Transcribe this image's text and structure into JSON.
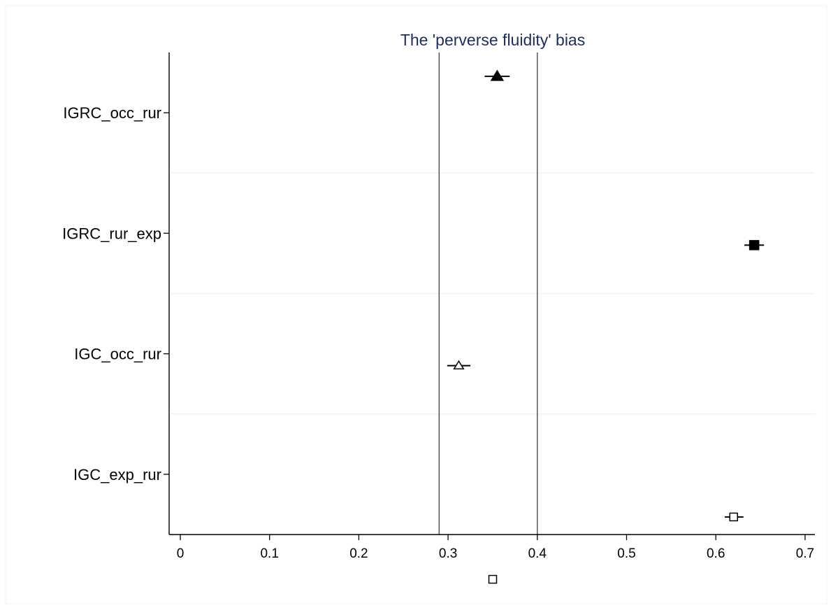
{
  "chart_data": {
    "type": "scatter",
    "title": "The 'perverse fluidity' bias",
    "xlabel": "",
    "ylabel": "",
    "xlim": [
      -0.01,
      0.71
    ],
    "xticks": [
      "0",
      "0.1",
      "0.2",
      "0.3",
      "0.4",
      "0.5",
      "0.6",
      "0.7"
    ],
    "categories": [
      "IGRC_occ_rur",
      "IGRC_rur_exp",
      "IGC_occ_rur",
      "IGC_exp_rur"
    ],
    "reference_lines": [
      0.29,
      0.4
    ],
    "grid": "horizontal separators between categories",
    "points": [
      {
        "category": "IGRC_occ_rur",
        "value": 0.355,
        "ci": [
          0.341,
          0.369
        ],
        "marker": "triangle-filled",
        "offset": "above"
      },
      {
        "category": "IGRC_rur_exp",
        "value": 0.643,
        "ci": [
          0.632,
          0.654
        ],
        "marker": "square-filled",
        "offset": "below"
      },
      {
        "category": "IGC_occ_rur",
        "value": 0.312,
        "ci": [
          0.299,
          0.325
        ],
        "marker": "triangle-hollow",
        "offset": "below"
      },
      {
        "category": "IGC_exp_rur",
        "value": 0.62,
        "ci": [
          0.61,
          0.631
        ],
        "marker": "square-hollow",
        "offset": "below"
      }
    ],
    "legend": {
      "placement": "bottom-center",
      "entries": [
        {
          "marker": "square-hollow",
          "label": ""
        }
      ]
    }
  },
  "colors": {
    "marker": "#000000",
    "axis": "#000000",
    "reference_line": "#4a4a4a",
    "separator": "#eef3f3",
    "title": "#1e2d5c",
    "frame": "#f2f6f6"
  }
}
